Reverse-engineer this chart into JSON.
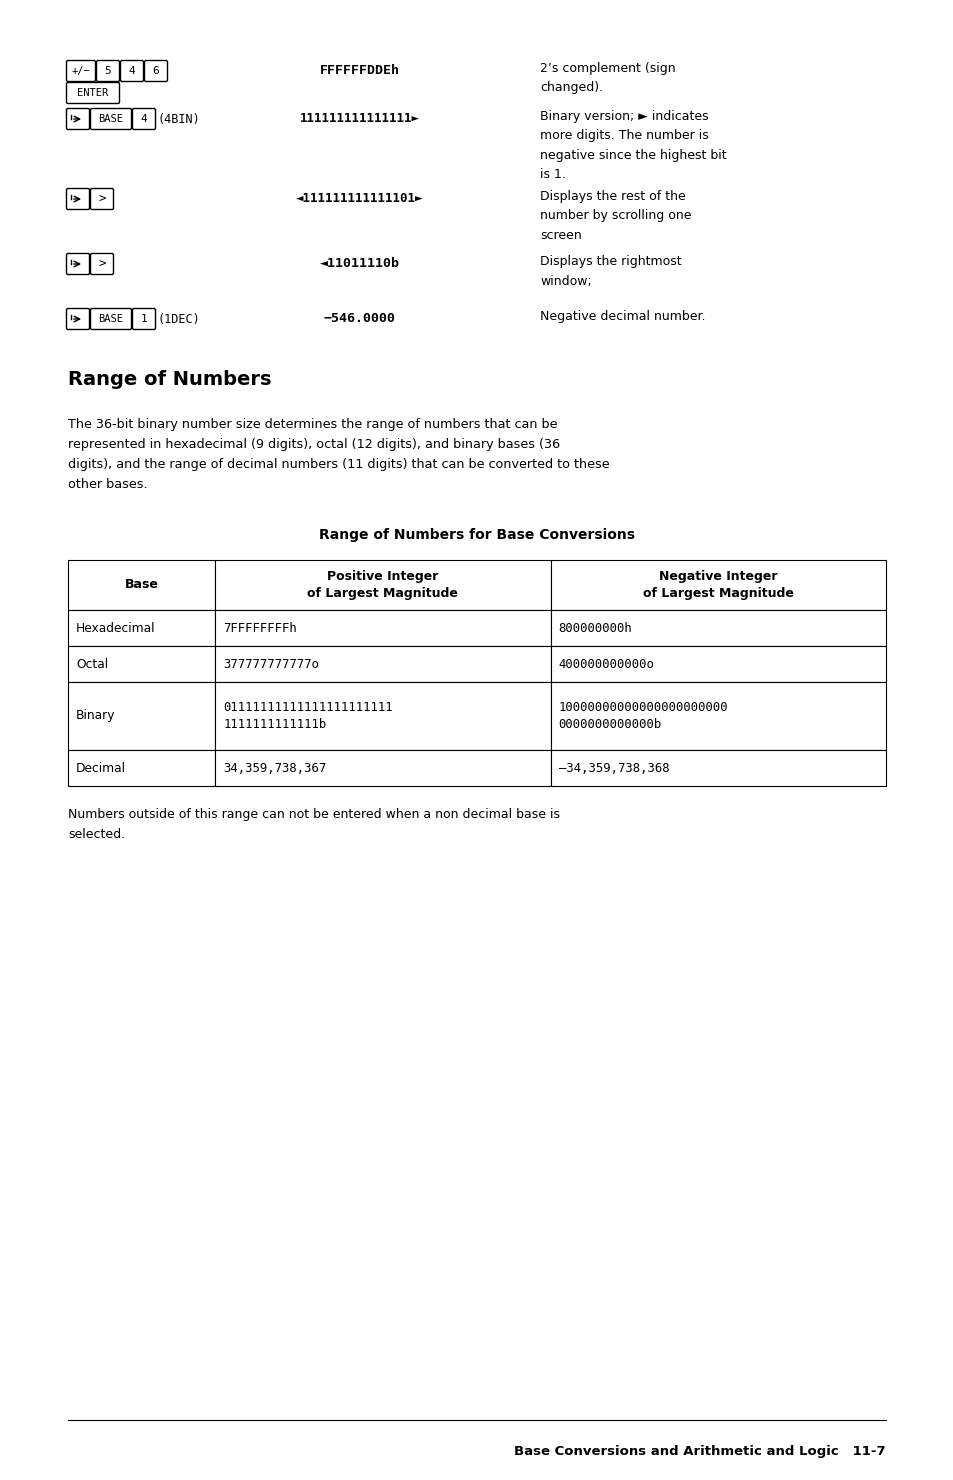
{
  "bg_color": "#ffffff",
  "page_width": 9.54,
  "page_height": 14.8,
  "section_title": "Range of Numbers",
  "body_text": "The 36-bit binary number size determines the range of numbers that can be\nrepresented in hexadecimal (9 digits), octal (12 digits), and binary bases (36\ndigits), and the range of decimal numbers (11 digits) that can be converted to these\nother bases.",
  "table_title": "Range of Numbers for Base Conversions",
  "table_headers": [
    "Base",
    "Positive Integer\nof Largest Magnitude",
    "Negative Integer\nof Largest Magnitude"
  ],
  "table_rows": [
    [
      "Hexadecimal",
      "7FFFFFFFFh",
      "800000000h"
    ],
    [
      "Octal",
      "377777777777o",
      "400000000000o"
    ],
    [
      "Binary",
      "01111111111111111111111\n1111111111111b",
      "10000000000000000000000\n0000000000000b"
    ],
    [
      "Decimal",
      "34,359,738,367",
      "–34,359,738,368"
    ]
  ],
  "footer_note": "Numbers outside of this range can not be entered when a non decimal base is\nselected.",
  "footer_text": "Base Conversions and Arithmetic and Logic",
  "footer_page": "11-7",
  "top_rows": [
    {
      "key_col": "row1_keys",
      "display": "FFFFFFDDEh",
      "desc": "2’s complement (sign\nchanged)."
    },
    {
      "key_col": "row3_keys",
      "display": "111111111111111►",
      "desc": "Binary version; ► indicates\nmore digits. The number is\nnegative since the highest bit\nis 1."
    },
    {
      "key_col": "row4_keys",
      "display": "◄111111111111101►",
      "desc": "Displays the rest of the\nnumber by scrolling one\nscreen"
    },
    {
      "key_col": "row5_keys",
      "display": "◄11011110b",
      "desc": "Displays the rightmost\nwindow;"
    },
    {
      "key_col": "row6_keys",
      "display": "−546.0000",
      "desc": "Negative decimal number."
    }
  ]
}
